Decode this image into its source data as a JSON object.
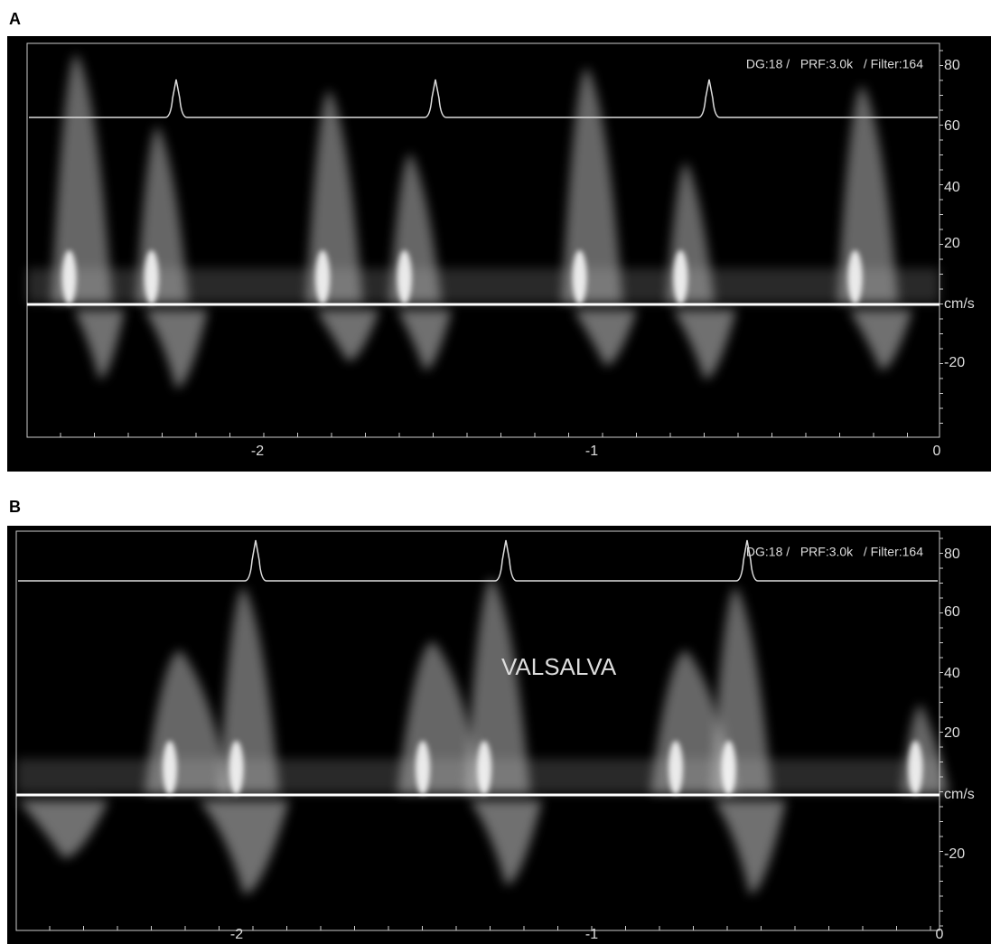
{
  "panels": [
    {
      "label": "A",
      "settings_text": "DG:18 /   PRF:3.0k   / Filter:164",
      "y_labels": [
        "80",
        "60",
        "40",
        "20",
        "cm/s",
        "-20"
      ],
      "x_labels": [
        "-2",
        "-1",
        "0"
      ]
    },
    {
      "label": "B",
      "settings_text": "DG:18 /   PRF:3.0k   / Filter:164",
      "annotation": "VALSALVA",
      "y_labels": [
        "80",
        "60",
        "40",
        "20",
        "cm/s",
        "-20"
      ],
      "x_labels": [
        "-2",
        "-1",
        "0"
      ]
    }
  ]
}
